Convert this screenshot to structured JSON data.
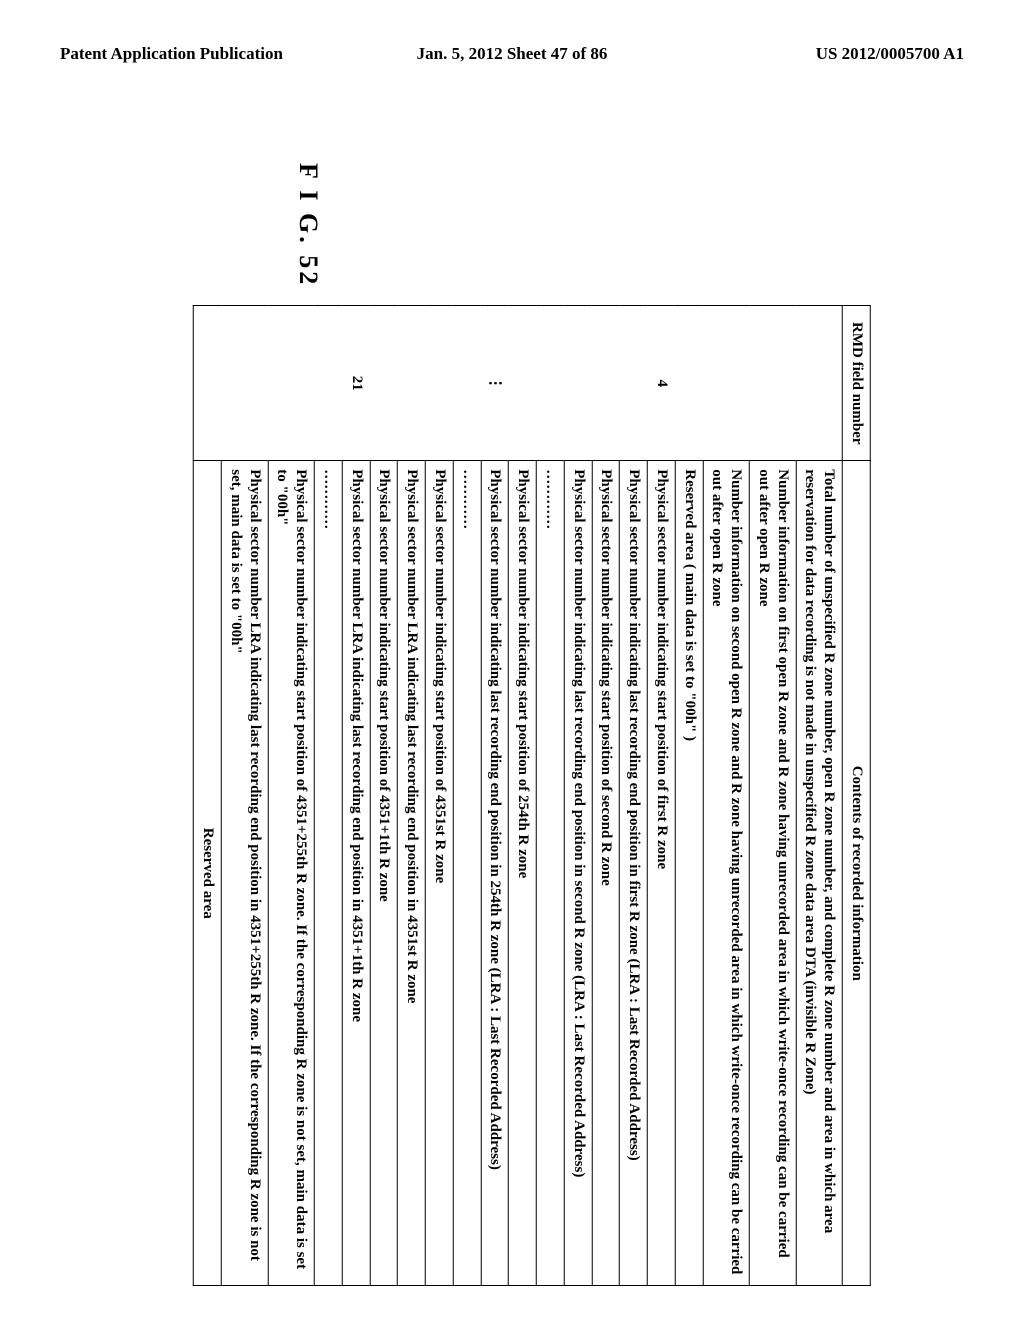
{
  "header": {
    "left": "Patent Application Publication",
    "center": "Jan. 5, 2012   Sheet 47 of 86",
    "right": "US 2012/0005700 A1"
  },
  "figure_label": "F I G. 52",
  "table": {
    "columns": [
      "RMD field number",
      "Contents of recorded information"
    ],
    "groups": [
      {
        "number": "4",
        "rows": [
          "Total number of unspecified R zone number, open R zone number, and complete R zone number and area in which area reservation for data recording is not made in unspecified R zone data area DTA (invisible R Zone)",
          "Number information on first open R zone and R zone having unrecorded area in which write-once recording can be carried out after open R zone",
          "Number information on second open R zone and R zone having unrecorded area in which write-once recording can be carried out after open R zone",
          "Reserved area ( main data is set to \"00h\" )",
          "Physical sector number indicating start position of first R zone",
          "Physical sector number indicating last recording end position in first R zone (LRA : Last Recorded Address)",
          "Physical sector number indicating start position of second R zone",
          "Physical sector number indicating last recording end position in second R zone (LRA : Last Recorded Address)",
          "…………"
        ]
      },
      {
        "number": "⋮",
        "rows": [
          "Physical sector number indicating start position of 254th R zone",
          "Physical sector number indicating last recording end position in 254th R zone (LRA : Last Recorded Address)",
          "…………"
        ]
      },
      {
        "number": "21",
        "rows": [
          "Physical sector number indicating start position of 4351st R zone",
          "Physical sector number LRA indicating last recording end position in 4351st R zone",
          "Physical sector number indicating start position of 4351+1th R zone",
          "Physical sector number LRA indicating last recording end position in 4351+1th R zone",
          "…………",
          "Physical sector number indicating start position of 4351+255th R zone.  If the corresponding R zone is not set, main data is set to \"00h\"",
          "Physical sector number LRA indicating last recording end position in 4351+255th R zone.  If the corresponding R zone is not set, main data is set to \"00h\""
        ]
      }
    ],
    "reserved_row": "Reserved area"
  }
}
